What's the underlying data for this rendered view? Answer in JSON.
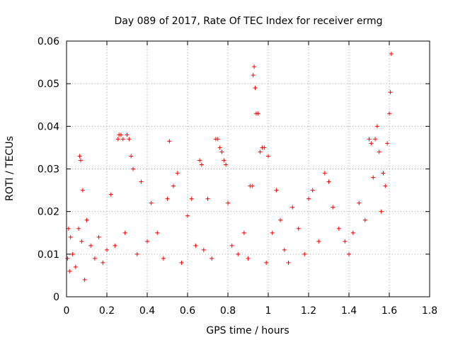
{
  "chart_data": {
    "type": "scatter",
    "title": "Day 089 of 2017, Rate Of TEC Index for receiver ermg",
    "xlabel": "GPS time / hours",
    "ylabel": "ROTI / TECUs",
    "xlim": [
      0,
      1.8
    ],
    "ylim": [
      0,
      0.06
    ],
    "x_ticks": [
      "0",
      "0.2",
      "0.4",
      "0.6",
      "0.8",
      "1",
      "1.2",
      "1.4",
      "1.6",
      "1.8"
    ],
    "y_ticks": [
      "0",
      "0.01",
      "0.02",
      "0.03",
      "0.04",
      "0.05",
      "0.06"
    ],
    "grid": true,
    "marker": "+",
    "color": "#ff0000",
    "series": [
      {
        "x": [
          0.005,
          0.01,
          0.015,
          0.02,
          0.03,
          0.045,
          0.06,
          0.065,
          0.07,
          0.075,
          0.08,
          0.09,
          0.1,
          0.12,
          0.14,
          0.16,
          0.18,
          0.2,
          0.22,
          0.24,
          0.255,
          0.26,
          0.27,
          0.28,
          0.29,
          0.3,
          0.31,
          0.32,
          0.33,
          0.35,
          0.37,
          0.4,
          0.42,
          0.45,
          0.48,
          0.5,
          0.51,
          0.53,
          0.55,
          0.57,
          0.6,
          0.62,
          0.64,
          0.66,
          0.67,
          0.68,
          0.7,
          0.72,
          0.74,
          0.75,
          0.76,
          0.77,
          0.78,
          0.79,
          0.8,
          0.82,
          0.85,
          0.88,
          0.9,
          0.91,
          0.92,
          0.925,
          0.93,
          0.935,
          0.94,
          0.95,
          0.96,
          0.97,
          0.98,
          0.99,
          1.0,
          1.02,
          1.04,
          1.06,
          1.08,
          1.1,
          1.12,
          1.15,
          1.18,
          1.2,
          1.22,
          1.25,
          1.28,
          1.3,
          1.32,
          1.35,
          1.38,
          1.4,
          1.42,
          1.45,
          1.48,
          1.5,
          1.51,
          1.52,
          1.53,
          1.54,
          1.55,
          1.56,
          1.57,
          1.58,
          1.59,
          1.6,
          1.605,
          1.61
        ],
        "y": [
          0.009,
          0.016,
          0.006,
          0.014,
          0.01,
          0.007,
          0.016,
          0.033,
          0.032,
          0.013,
          0.025,
          0.004,
          0.018,
          0.012,
          0.009,
          0.014,
          0.008,
          0.011,
          0.024,
          0.012,
          0.037,
          0.038,
          0.038,
          0.037,
          0.015,
          0.038,
          0.037,
          0.033,
          0.03,
          0.01,
          0.027,
          0.013,
          0.022,
          0.015,
          0.009,
          0.023,
          0.0365,
          0.026,
          0.029,
          0.008,
          0.019,
          0.023,
          0.012,
          0.032,
          0.031,
          0.011,
          0.023,
          0.009,
          0.037,
          0.037,
          0.035,
          0.034,
          0.032,
          0.031,
          0.022,
          0.012,
          0.01,
          0.015,
          0.009,
          0.026,
          0.026,
          0.052,
          0.054,
          0.049,
          0.043,
          0.043,
          0.034,
          0.035,
          0.035,
          0.008,
          0.033,
          0.015,
          0.025,
          0.018,
          0.011,
          0.008,
          0.021,
          0.016,
          0.01,
          0.023,
          0.025,
          0.013,
          0.029,
          0.027,
          0.021,
          0.016,
          0.013,
          0.01,
          0.015,
          0.022,
          0.018,
          0.037,
          0.036,
          0.028,
          0.037,
          0.04,
          0.034,
          0.02,
          0.029,
          0.026,
          0.036,
          0.043,
          0.048,
          0.057
        ]
      }
    ]
  }
}
